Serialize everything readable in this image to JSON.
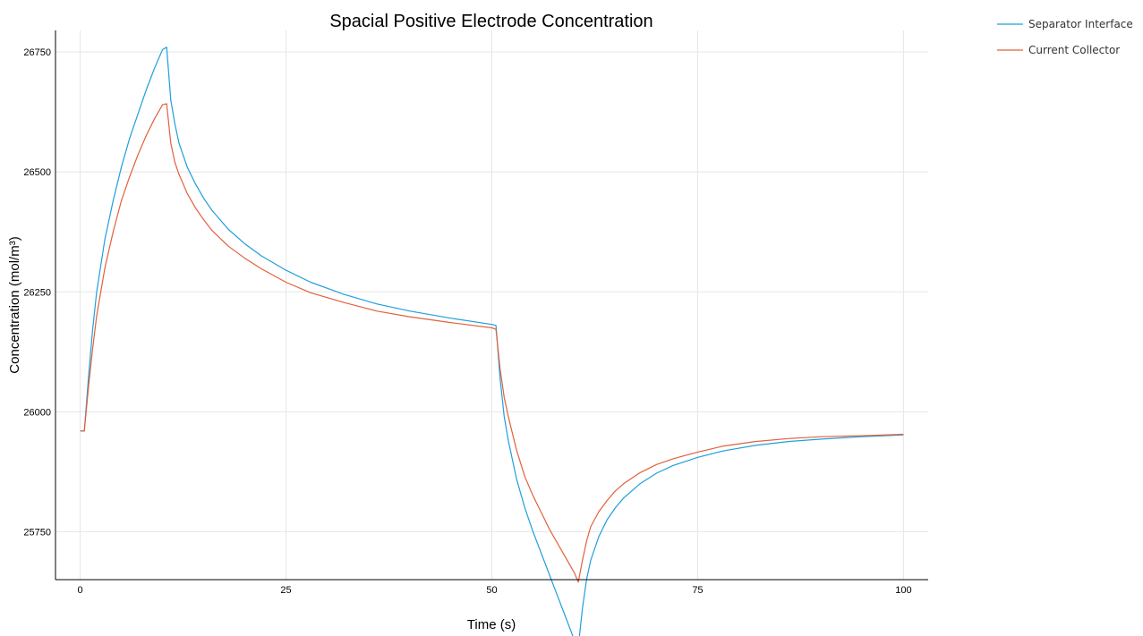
{
  "chart_data": {
    "type": "line",
    "title": "Spacial Positive Electrode Concentration",
    "xlabel": "Time (s)",
    "ylabel": "Concentration (mol/m³)",
    "xlim": [
      -3,
      103
    ],
    "ylim": [
      25650,
      26795
    ],
    "xticks": [
      0,
      25,
      50,
      75,
      100
    ],
    "yticks": [
      25750,
      26000,
      26250,
      26500,
      26750
    ],
    "grid": true,
    "legend_position": "top-right-outside",
    "series": [
      {
        "name": "Separator Interface",
        "color": "#1f9fdb",
        "x": [
          0,
          0.5,
          1,
          1.5,
          2,
          3,
          4,
          5,
          6,
          7,
          8,
          9,
          10,
          10.5,
          11,
          11.5,
          12,
          13,
          14,
          15,
          16,
          18,
          20,
          22,
          25,
          28,
          32,
          36,
          40,
          45,
          50,
          50.5,
          51,
          51.5,
          52,
          53,
          54,
          55,
          56,
          57,
          58,
          59,
          60,
          60.5,
          61,
          61.5,
          62,
          63,
          64,
          65,
          66,
          68,
          70,
          72,
          75,
          78,
          82,
          86,
          90,
          95,
          100
        ],
        "y": [
          25960,
          25960,
          26070,
          26170,
          26250,
          26360,
          26440,
          26510,
          26570,
          26620,
          26670,
          26715,
          26755,
          26760,
          26650,
          26600,
          26560,
          26510,
          26475,
          26445,
          26420,
          26380,
          26350,
          26325,
          26295,
          26270,
          26245,
          26225,
          26210,
          26195,
          26182,
          26180,
          26070,
          25990,
          25940,
          25860,
          25800,
          25750,
          25705,
          25660,
          25615,
          25570,
          25525,
          25510,
          25590,
          25650,
          25690,
          25740,
          25775,
          25800,
          25820,
          25850,
          25872,
          25888,
          25905,
          25918,
          25930,
          25938,
          25943,
          25948,
          25952
        ]
      },
      {
        "name": "Current Collector",
        "color": "#e1613b",
        "x": [
          0,
          0.5,
          1,
          1.5,
          2,
          3,
          4,
          5,
          6,
          7,
          8,
          9,
          10,
          10.5,
          11,
          11.5,
          12,
          13,
          14,
          15,
          16,
          18,
          20,
          22,
          25,
          28,
          32,
          36,
          40,
          45,
          50,
          50.5,
          51,
          51.5,
          52,
          53,
          54,
          55,
          56,
          57,
          58,
          59,
          60,
          60.5,
          61,
          61.5,
          62,
          63,
          64,
          65,
          66,
          68,
          70,
          72,
          75,
          78,
          82,
          86,
          90,
          95,
          100
        ],
        "y": [
          25960,
          25960,
          26050,
          26130,
          26200,
          26300,
          26375,
          26440,
          26490,
          26535,
          26575,
          26610,
          26640,
          26642,
          26560,
          26520,
          26495,
          26455,
          26425,
          26400,
          26378,
          26345,
          26320,
          26298,
          26270,
          26248,
          26228,
          26210,
          26198,
          26186,
          26175,
          26172,
          26090,
          26030,
          25990,
          25920,
          25865,
          25825,
          25790,
          25755,
          25725,
          25695,
          25665,
          25645,
          25690,
          25730,
          25760,
          25792,
          25815,
          25835,
          25850,
          25873,
          25890,
          25902,
          25916,
          25928,
          25938,
          25944,
          25948,
          25950,
          25953
        ]
      }
    ]
  }
}
